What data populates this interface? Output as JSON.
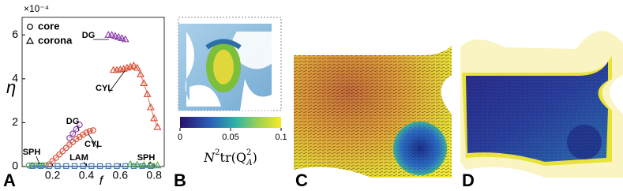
{
  "chart_data": {
    "type": "scatter",
    "panel_label": "A",
    "x_label": "f",
    "y_label": "η",
    "y_multiplier": "×10⁻⁴",
    "xlim": [
      0.02,
      0.86
    ],
    "xticks": [
      0.2,
      0.4,
      0.6,
      0.8
    ],
    "ylim": [
      0,
      6.8
    ],
    "yticks": [
      0,
      2,
      4,
      6
    ],
    "legend": [
      "core",
      "corona"
    ],
    "series": [
      {
        "marker": "circle",
        "color": "#4fa84a",
        "x": [
          0.06,
          0.08,
          0.1,
          0.12,
          0.14,
          0.16
        ],
        "values": [
          0.05,
          0.05,
          0.05,
          0.05,
          0.05,
          0.05
        ]
      },
      {
        "marker": "square",
        "color": "#4a7fc1",
        "x": [
          0.08,
          0.13,
          0.18,
          0.23,
          0.28,
          0.33,
          0.38,
          0.43,
          0.48,
          0.53,
          0.58,
          0.63,
          0.68,
          0.73,
          0.78
        ],
        "values": [
          0.02,
          0.02,
          0.02,
          0.02,
          0.02,
          0.02,
          0.02,
          0.02,
          0.02,
          0.02,
          0.02,
          0.02,
          0.02,
          0.02,
          0.02
        ]
      },
      {
        "marker": "circle",
        "color": "#d9513a",
        "x": [
          0.18,
          0.2,
          0.22,
          0.24,
          0.26,
          0.28,
          0.3,
          0.32,
          0.34,
          0.36,
          0.38,
          0.4,
          0.42,
          0.44
        ],
        "values": [
          0.1,
          0.25,
          0.4,
          0.55,
          0.7,
          0.85,
          1.0,
          1.12,
          1.25,
          1.35,
          1.45,
          1.55,
          1.62,
          1.65
        ]
      },
      {
        "marker": "circle",
        "color": "#8e44ad",
        "x": [
          0.3,
          0.32,
          0.34,
          0.36
        ],
        "values": [
          1.3,
          1.5,
          1.7,
          1.9
        ]
      },
      {
        "marker": "triangle",
        "color": "#d9513a",
        "x": [
          0.56,
          0.58,
          0.6,
          0.62,
          0.64,
          0.66,
          0.68,
          0.7,
          0.72,
          0.74,
          0.76,
          0.78,
          0.8,
          0.82
        ],
        "values": [
          4.4,
          4.4,
          4.42,
          4.45,
          4.5,
          4.55,
          4.6,
          4.5,
          4.2,
          3.8,
          3.3,
          2.7,
          2.2,
          1.8
        ]
      },
      {
        "marker": "triangle",
        "color": "#8e44ad",
        "x": [
          0.53,
          0.55,
          0.57,
          0.59,
          0.61,
          0.63
        ],
        "values": [
          6.0,
          6.0,
          5.95,
          5.9,
          5.85,
          5.8
        ]
      },
      {
        "marker": "triangle",
        "color": "#4fa84a",
        "x": [
          0.66,
          0.7,
          0.74,
          0.78,
          0.82
        ],
        "values": [
          0.1,
          0.08,
          0.06,
          0.05,
          0.05
        ]
      }
    ],
    "annotations": [
      "SPH",
      "DG",
      "CYL",
      "LAM",
      "DG",
      "CYL",
      "SPH"
    ]
  },
  "panel_b": {
    "label": "B",
    "colorbar": {
      "lim": [
        0,
        0.1
      ],
      "ticks": [
        0,
        0.05,
        0.1
      ],
      "label": [
        "N",
        "2",
        "tr(Q",
        "2",
        "A",
        ")"
      ]
    }
  },
  "panel_c": {
    "label": "C"
  },
  "panel_d": {
    "label": "D"
  }
}
